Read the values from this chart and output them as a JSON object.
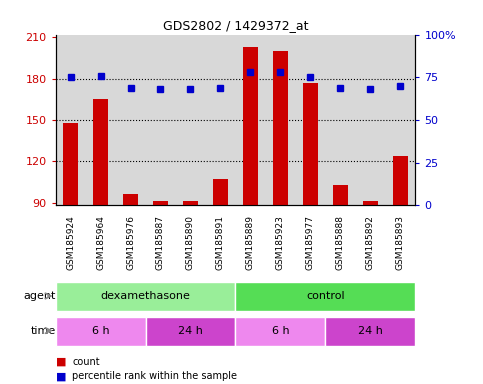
{
  "title": "GDS2802 / 1429372_at",
  "samples": [
    "GSM185924",
    "GSM185964",
    "GSM185976",
    "GSM185887",
    "GSM185890",
    "GSM185891",
    "GSM185889",
    "GSM185923",
    "GSM185977",
    "GSM185888",
    "GSM185892",
    "GSM185893"
  ],
  "count_values": [
    148,
    165,
    96,
    91,
    91,
    107,
    203,
    200,
    177,
    103,
    91,
    124
  ],
  "percentile_values": [
    75,
    76,
    69,
    68,
    68,
    69,
    78,
    78,
    75,
    69,
    68,
    70
  ],
  "ylim_left": [
    88,
    212
  ],
  "ylim_right": [
    0,
    100
  ],
  "yticks_left": [
    90,
    120,
    150,
    180,
    210
  ],
  "ytick_labels_left": [
    "90",
    "120",
    "150",
    "180",
    "210"
  ],
  "yticks_right": [
    0,
    25,
    50,
    75,
    100
  ],
  "ytick_labels_right": [
    "0",
    "25",
    "50",
    "75",
    "100%"
  ],
  "hlines": [
    120,
    150,
    180
  ],
  "bar_color": "#cc0000",
  "dot_color": "#0000cc",
  "agent_groups": [
    {
      "label": "dexamethasone",
      "start": 0,
      "end": 6,
      "color": "#99ee99"
    },
    {
      "label": "control",
      "start": 6,
      "end": 12,
      "color": "#55dd55"
    }
  ],
  "time_groups": [
    {
      "label": "6 h",
      "start": 0,
      "end": 3,
      "color": "#ee88ee"
    },
    {
      "label": "24 h",
      "start": 3,
      "end": 6,
      "color": "#cc44cc"
    },
    {
      "label": "6 h",
      "start": 6,
      "end": 9,
      "color": "#ee88ee"
    },
    {
      "label": "24 h",
      "start": 9,
      "end": 12,
      "color": "#cc44cc"
    }
  ],
  "legend_items": [
    {
      "color": "#cc0000",
      "label": "count"
    },
    {
      "color": "#0000cc",
      "label": "percentile rank within the sample"
    }
  ],
  "bg_color": "#d8d8d8",
  "fig_width": 4.83,
  "fig_height": 3.84,
  "fig_dpi": 100
}
